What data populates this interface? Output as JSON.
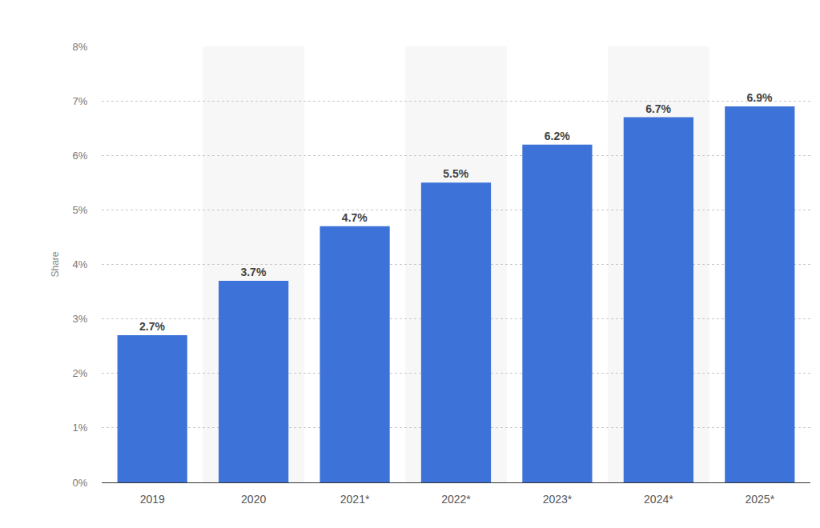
{
  "chart_data": {
    "type": "bar",
    "categories": [
      "2019",
      "2020",
      "2021*",
      "2022*",
      "2023*",
      "2024*",
      "2025*"
    ],
    "values": [
      2.7,
      3.7,
      4.7,
      5.5,
      6.2,
      6.7,
      6.9
    ],
    "value_labels": [
      "2.7%",
      "3.7%",
      "4.7%",
      "5.5%",
      "6.2%",
      "6.7%",
      "6.9%"
    ],
    "y_label": "Share",
    "color": "#3d72d8",
    "ylim": [
      0,
      8
    ],
    "yticks": [
      {
        "value": 0,
        "label": "0%"
      },
      {
        "value": 1,
        "label": "1%"
      },
      {
        "value": 2,
        "label": "2%"
      },
      {
        "value": 3,
        "label": "3%"
      },
      {
        "value": 4,
        "label": "4%"
      },
      {
        "value": 5,
        "label": "5%"
      },
      {
        "value": 6,
        "label": "6%"
      },
      {
        "value": 7,
        "label": "7%"
      },
      {
        "value": 8,
        "label": "8%"
      }
    ],
    "grid": true,
    "data_labels": true
  }
}
